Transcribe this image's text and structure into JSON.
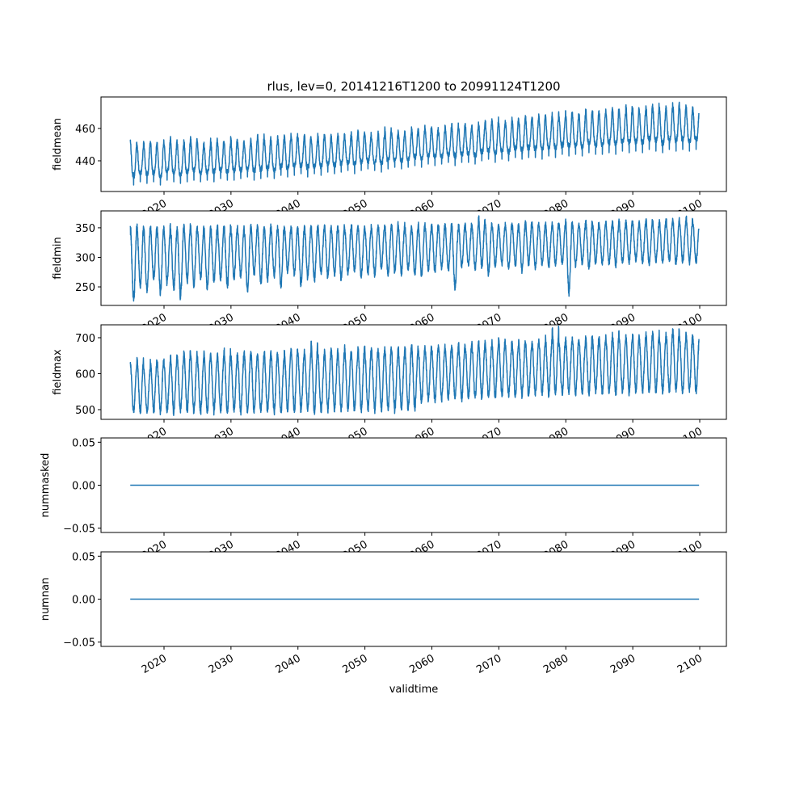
{
  "chart_data": {
    "type": "line",
    "title": "rlus, lev=0, 20141216T1200 to 20991124T1200",
    "xlabel": "validtime",
    "xlim": [
      2010.59,
      2103.98
    ],
    "xticks": [
      2020,
      2030,
      2040,
      2050,
      2060,
      2070,
      2080,
      2090,
      2100
    ],
    "time_start": 2014.96,
    "time_end": 2099.9,
    "series_color": "#1f77b4",
    "note_years": "annual min/max envelope per year 2015..2099",
    "panels": [
      {
        "ylabel": "fieldmean",
        "ylim": [
          421,
          479.5
        ],
        "yticks": [
          440,
          460
        ],
        "ytick_labels": [
          "440",
          "460"
        ],
        "annual_max": [
          452,
          450,
          452,
          452,
          451,
          453,
          454,
          451,
          453,
          455,
          452,
          451,
          454,
          453,
          452,
          455,
          453,
          452,
          454,
          456,
          454,
          453,
          455,
          456,
          457,
          455,
          456,
          454,
          457,
          456,
          455,
          457,
          456,
          458,
          459,
          457,
          456,
          458,
          460,
          458,
          459,
          458,
          461,
          460,
          462,
          461,
          459,
          462,
          463,
          462,
          463,
          462,
          464,
          465,
          466,
          464,
          465,
          467,
          466,
          468,
          467,
          469,
          468,
          470,
          469,
          471,
          470,
          469,
          472,
          471,
          471,
          472,
          473,
          471,
          474,
          473,
          472,
          474,
          475,
          473,
          474,
          476,
          475,
          474,
          473
        ],
        "annual_min": [
          425,
          427,
          426,
          427,
          425,
          428,
          427,
          426,
          427,
          428,
          427,
          428,
          427,
          429,
          428,
          428,
          429,
          430,
          428,
          429,
          430,
          429,
          431,
          430,
          431,
          432,
          430,
          432,
          431,
          433,
          432,
          433,
          434,
          432,
          434,
          435,
          434,
          433,
          435,
          436,
          435,
          436,
          437,
          436,
          438,
          437,
          438,
          439,
          437,
          439,
          439,
          438,
          440,
          441,
          439,
          441,
          440,
          442,
          441,
          442,
          442,
          441,
          443,
          442,
          444,
          443,
          444,
          443,
          445,
          444,
          444,
          445,
          444,
          446,
          445,
          446,
          445,
          447,
          446,
          445,
          447,
          446,
          447,
          446,
          447
        ]
      },
      {
        "ylabel": "fieldmin",
        "ylim": [
          218.6,
          378.6
        ],
        "yticks": [
          250,
          300,
          350
        ],
        "ytick_labels": [
          "250",
          "300",
          "350"
        ],
        "annual_max": [
          353,
          352,
          351,
          352,
          350,
          353,
          351,
          352,
          354,
          353,
          352,
          351,
          353,
          354,
          352,
          353,
          351,
          352,
          354,
          353,
          352,
          353,
          354,
          351,
          353,
          352,
          354,
          353,
          352,
          355,
          354,
          353,
          352,
          355,
          354,
          353,
          352,
          355,
          354,
          356,
          355,
          354,
          353,
          356,
          355,
          356,
          354,
          357,
          355,
          356,
          357,
          356,
          368,
          358,
          357,
          356,
          359,
          358,
          357,
          362,
          358,
          359,
          357,
          360,
          358,
          361,
          359,
          358,
          362,
          360,
          359,
          361,
          362,
          360,
          363,
          361,
          362,
          364,
          362,
          363,
          365,
          366,
          364,
          368,
          360
        ],
        "annual_min": [
          226,
          248,
          240,
          262,
          238,
          255,
          244,
          230,
          258,
          250,
          262,
          245,
          258,
          260,
          250,
          262,
          265,
          242,
          270,
          255,
          262,
          268,
          248,
          275,
          270,
          252,
          265,
          260,
          272,
          266,
          268,
          262,
          270,
          275,
          265,
          272,
          270,
          280,
          268,
          275,
          272,
          278,
          270,
          268,
          276,
          275,
          280,
          278,
          245,
          282,
          285,
          278,
          282,
          270,
          283,
          288,
          280,
          285,
          276,
          287,
          282,
          286,
          283,
          285,
          288,
          240,
          286,
          288,
          282,
          290,
          287,
          289,
          285,
          290,
          288,
          292,
          289,
          286,
          291,
          290,
          293,
          288,
          292,
          291,
          290
        ]
      },
      {
        "ylabel": "fieldmax",
        "ylim": [
          473,
          735.9
        ],
        "yticks": [
          500,
          600,
          700
        ],
        "ytick_labels": [
          "500",
          "600",
          "700"
        ],
        "annual_max": [
          628,
          645,
          615,
          640,
          636,
          638,
          650,
          648,
          663,
          655,
          648,
          660,
          655,
          655,
          665,
          650,
          658,
          660,
          662,
          655,
          660,
          664,
          650,
          665,
          670,
          662,
          668,
          690,
          655,
          668,
          670,
          665,
          672,
          660,
          675,
          668,
          672,
          670,
          675,
          668,
          672,
          675,
          680,
          670,
          678,
          675,
          680,
          682,
          676,
          684,
          680,
          685,
          690,
          682,
          688,
          700,
          686,
          690,
          695,
          688,
          690,
          695,
          700,
          725,
          692,
          698,
          702,
          695,
          705,
          700,
          702,
          705,
          715,
          700,
          708,
          710,
          705,
          712,
          718,
          702,
          715,
          725,
          708,
          715,
          705
        ],
        "annual_min": [
          492,
          489,
          490,
          491,
          490,
          492,
          490,
          491,
          493,
          490,
          491,
          490,
          492,
          491,
          490,
          493,
          492,
          491,
          490,
          492,
          493,
          491,
          492,
          494,
          492,
          493,
          495,
          494,
          492,
          495,
          494,
          496,
          495,
          497,
          496,
          498,
          497,
          496,
          498,
          497,
          499,
          498,
          500,
          520,
          525,
          522,
          526,
          528,
          530,
          527,
          530,
          532,
          531,
          534,
          533,
          536,
          535,
          537,
          536,
          538,
          538,
          540,
          539,
          541,
          540,
          542,
          541,
          543,
          542,
          544,
          543,
          545,
          544,
          546,
          545,
          547,
          546,
          548,
          547,
          546,
          548,
          549,
          547,
          548,
          550
        ]
      },
      {
        "ylabel": "nummasked",
        "ylim": [
          -0.055,
          0.055
        ],
        "yticks": [
          -0.05,
          0.0,
          0.05
        ],
        "ytick_labels": [
          "−0.05",
          "0.00",
          "0.05"
        ],
        "constant": 0
      },
      {
        "ylabel": "numnan",
        "ylim": [
          -0.055,
          0.055
        ],
        "yticks": [
          -0.05,
          0.0,
          0.05
        ],
        "ytick_labels": [
          "−0.05",
          "0.00",
          "0.05"
        ],
        "constant": 0
      }
    ]
  }
}
